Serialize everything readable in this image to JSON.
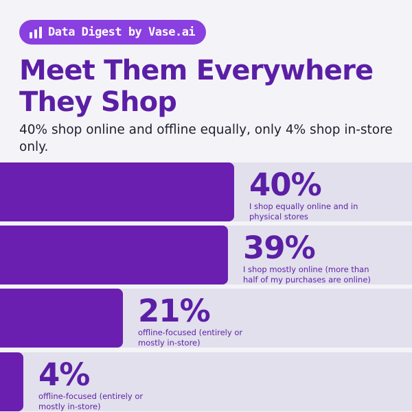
{
  "badge": {
    "text": "Data Digest by Vase.ai",
    "icon": "bar-chart-icon"
  },
  "title": "Meet Them Everywhere They Shop",
  "subtitle": "40% shop online and offline equally, only 4% shop in-store only.",
  "colors": {
    "bar": "#6a1fb0",
    "track": "#e2e0ec",
    "accent": "#5b1fa6",
    "badge": "#8a3fe0"
  },
  "chart_data": {
    "type": "bar",
    "orientation": "horizontal",
    "categories": [
      "I shop equally online and in physical stores",
      "I shop mostly online (more than half of my purchases are online)",
      "offline-focused (entirely or mostly in-store)",
      "offline-focused (entirely or mostly in-store)"
    ],
    "values": [
      40,
      39,
      21,
      4
    ],
    "value_labels": [
      "40%",
      "39%",
      "21%",
      "4%"
    ],
    "xlim": [
      0,
      100
    ],
    "bars": [
      {
        "value": 40,
        "label": "40%",
        "desc": [
          "I shop equally online and in",
          "physical stores"
        ]
      },
      {
        "value": 39,
        "label": "39%",
        "desc": [
          "I shop mostly online (more than",
          "half of my purchases are online)"
        ]
      },
      {
        "value": 21,
        "label": "21%",
        "desc": [
          "offline-focused (entirely or",
          "mostly in-store)"
        ]
      },
      {
        "value": 4,
        "label": "4%",
        "desc": [
          "offline-focused (entirely or",
          "mostly in-store)"
        ]
      }
    ]
  }
}
